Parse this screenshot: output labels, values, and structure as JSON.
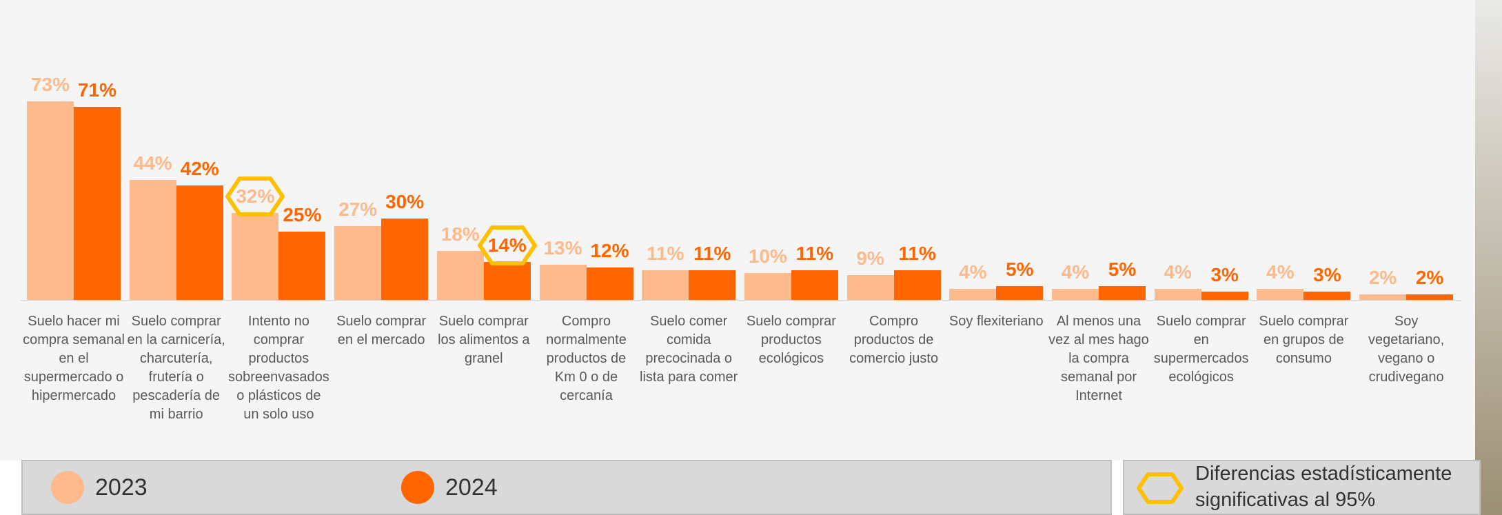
{
  "chart_data": {
    "type": "bar",
    "categories": [
      "Suelo hacer mi compra semanal en el supermercado o hipermercado",
      "Suelo comprar en la carnicería, charcutería, frutería o pescadería de mi barrio",
      "Intento no comprar productos sobreenvasados o plásticos de un solo uso",
      "Suelo comprar en el mercado",
      "Suelo comprar los alimentos a granel",
      "Compro normalmente productos de Km 0 o de cercanía",
      "Suelo comer comida precocinada o lista para comer",
      "Suelo comprar productos ecológicos",
      "Compro productos de comercio justo",
      "Soy flexiteriano",
      "Al menos una vez al mes hago la compra semanal por Internet",
      "Suelo comprar en supermercados ecológicos",
      "Suelo comprar en grupos de consumo",
      "Soy vegetariano, vegano o crudivegano"
    ],
    "series": [
      {
        "name": "2023",
        "color": "#fdba8c",
        "values": [
          73,
          44,
          32,
          27,
          18,
          13,
          11,
          10,
          9,
          4,
          4,
          4,
          4,
          2
        ],
        "value_labels": [
          "73%",
          "44%",
          "32%",
          "27%",
          "18%",
          "13%",
          "11%",
          "10%",
          "9%",
          "4%",
          "4%",
          "4%",
          "4%",
          "2%"
        ],
        "significant": [
          false,
          false,
          true,
          false,
          false,
          false,
          false,
          false,
          false,
          false,
          false,
          false,
          false,
          false
        ]
      },
      {
        "name": "2024",
        "color": "#ff6600",
        "values": [
          71,
          42,
          25,
          30,
          14,
          12,
          11,
          11,
          11,
          5,
          5,
          3,
          3,
          2
        ],
        "value_labels": [
          "71%",
          "42%",
          "25%",
          "30%",
          "14%",
          "12%",
          "11%",
          "11%",
          "11%",
          "5%",
          "5%",
          "3%",
          "3%",
          "2%"
        ],
        "significant": [
          false,
          false,
          false,
          false,
          true,
          false,
          false,
          false,
          false,
          false,
          false,
          false,
          false,
          false
        ]
      }
    ],
    "highlight_color": "#ffc000",
    "highlight_legend": "Diferencias estadísticamente significativas al 95%"
  }
}
